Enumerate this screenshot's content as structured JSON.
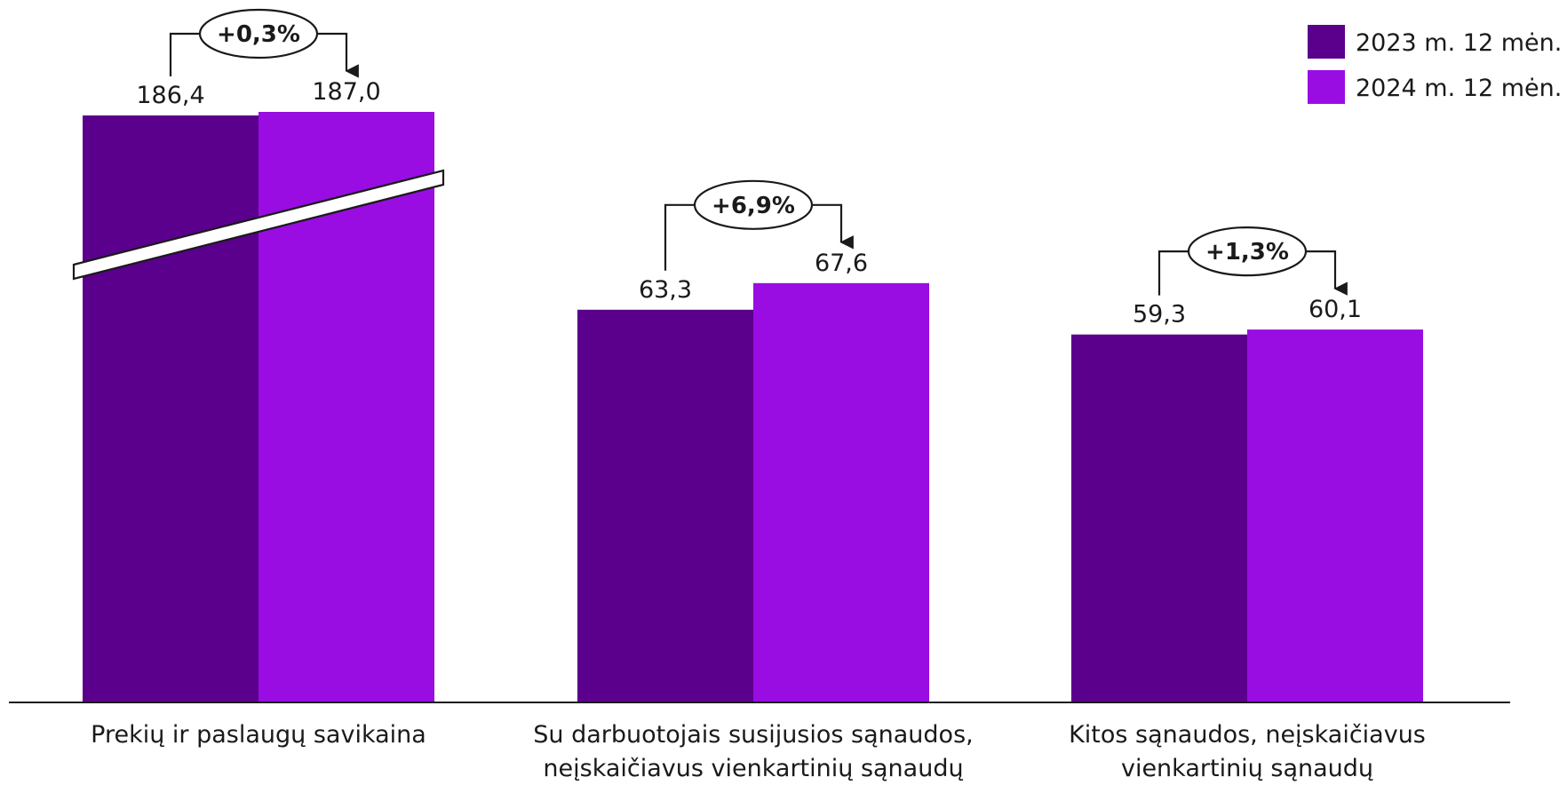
{
  "chart_data": {
    "type": "bar",
    "categories": [
      [
        "Prekių ir paslaugų savikaina"
      ],
      [
        "Su darbuotojais susijusios sąnaudos,",
        "neįskaičiavus vienkartinių sąnaudų"
      ],
      [
        "Kitos sąnaudos, neįskaičiavus",
        "vienkartinių sąnaudų"
      ]
    ],
    "series": [
      {
        "name": "2023 m. 12 mėn.",
        "values": [
          186.4,
          63.3,
          59.3
        ],
        "labels": [
          "186,4",
          "63,3",
          "59,3"
        ],
        "color": "#5b008c"
      },
      {
        "name": "2024 m. 12 mėn.",
        "values": [
          187.0,
          67.6,
          60.1
        ],
        "labels": [
          "187,0",
          "67,6",
          "60,1"
        ],
        "color": "#990de3"
      }
    ],
    "changes": [
      "+0,3%",
      "+6,9%",
      "+1,3%"
    ],
    "axis_break": {
      "category": 0
    },
    "legend_position": "top-right",
    "grid": false,
    "title": "",
    "xlabel": "",
    "ylabel": ""
  }
}
